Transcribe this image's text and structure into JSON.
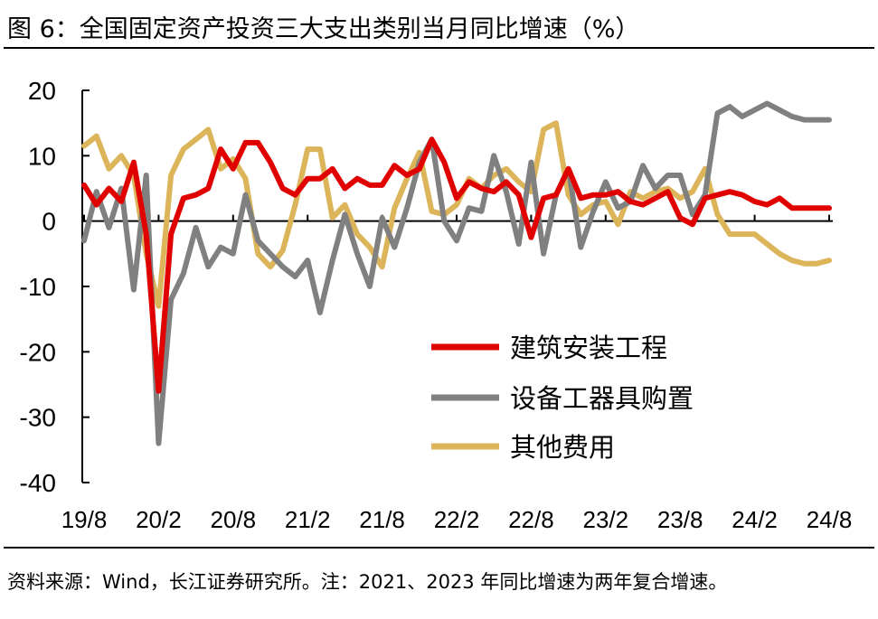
{
  "header": {
    "title": "图 6：全国固定资产投资三大支出类别当月同比增速（%）"
  },
  "footer": {
    "source": "资料来源：Wind，长江证券研究所。注：2021、2023 年同比增速为两年复合增速。"
  },
  "chart_data": {
    "type": "line",
    "title": "图 6：全国固定资产投资三大支出类别当月同比增速（%）",
    "x": [
      "19/8",
      "19/9",
      "19/10",
      "19/11",
      "19/12",
      "20/1",
      "20/2",
      "20/3",
      "20/4",
      "20/5",
      "20/6",
      "20/7",
      "20/8",
      "20/9",
      "20/10",
      "20/11",
      "20/12",
      "21/1",
      "21/2",
      "21/3",
      "21/4",
      "21/5",
      "21/6",
      "21/7",
      "21/8",
      "21/9",
      "21/10",
      "21/11",
      "21/12",
      "22/1",
      "22/2",
      "22/3",
      "22/4",
      "22/5",
      "22/6",
      "22/7",
      "22/8",
      "22/9",
      "22/10",
      "22/11",
      "22/12",
      "23/1",
      "23/2",
      "23/3",
      "23/4",
      "23/5",
      "23/6",
      "23/7",
      "23/8",
      "23/9",
      "23/10",
      "23/11",
      "23/12",
      "24/1",
      "24/2",
      "24/3",
      "24/4",
      "24/5",
      "24/6",
      "24/7",
      "24/8"
    ],
    "x_ticks": [
      "19/8",
      "20/2",
      "20/8",
      "21/2",
      "21/8",
      "22/2",
      "22/8",
      "23/2",
      "23/8",
      "24/2",
      "24/8"
    ],
    "ylim": [
      -40,
      20
    ],
    "yticks": [
      20,
      10,
      0,
      -10,
      -20,
      -30,
      -40
    ],
    "legend_position": "center-right",
    "series": [
      {
        "name": "建筑安装工程",
        "color": "#e00000",
        "values": [
          5.5,
          2.5,
          5.0,
          3.0,
          9.0,
          -2.0,
          -26.0,
          -2.0,
          3.5,
          4.0,
          5.0,
          11.0,
          8.0,
          12.0,
          12.0,
          9.0,
          5.0,
          4.0,
          6.5,
          6.5,
          8.0,
          5.0,
          6.5,
          5.5,
          5.5,
          8.5,
          7.0,
          8.0,
          12.5,
          9.0,
          3.5,
          6.0,
          5.0,
          4.5,
          6.0,
          4.0,
          -2.5,
          3.5,
          4.0,
          8.0,
          3.5,
          4.0,
          4.0,
          4.5,
          3.0,
          2.5,
          3.5,
          4.5,
          0.5,
          -0.5,
          3.5,
          4.0,
          4.5,
          4.0,
          3.0,
          2.5,
          3.5,
          2.0,
          2.0,
          2.0,
          2.0
        ]
      },
      {
        "name": "设备工器具购置",
        "color": "#808080",
        "values": [
          -3.0,
          4.5,
          -1.0,
          5.0,
          -10.5,
          7.0,
          -34.0,
          -12.0,
          -8.0,
          -1.0,
          -7.0,
          -4.0,
          -5.0,
          4.0,
          -3.0,
          -5.0,
          -7.0,
          -8.5,
          -6.0,
          -14.0,
          -6.0,
          1.0,
          -5.0,
          -10.0,
          0.5,
          -4.0,
          2.0,
          9.0,
          12.5,
          0.0,
          -3.0,
          2.0,
          1.5,
          10.0,
          4.5,
          -3.5,
          9.0,
          -5.0,
          4.0,
          8.0,
          -4.0,
          1.5,
          6.0,
          2.0,
          3.0,
          8.5,
          5.0,
          7.0,
          7.0,
          1.0,
          4.0,
          16.5,
          17.5,
          16.0,
          17.0,
          18.0,
          17.0,
          16.0,
          15.5,
          15.5,
          15.5
        ]
      },
      {
        "name": "其他费用",
        "color": "#dcb45a",
        "values": [
          11.5,
          13.0,
          8.0,
          10.0,
          7.0,
          -5.0,
          -13.0,
          7.0,
          11.0,
          12.5,
          14.0,
          8.0,
          9.5,
          6.5,
          -5.0,
          -7.0,
          -4.5,
          2.5,
          11.0,
          11.0,
          0.5,
          2.5,
          -2.0,
          -4.0,
          -7.0,
          2.0,
          6.5,
          10.5,
          1.5,
          1.0,
          2.5,
          6.5,
          5.0,
          7.0,
          8.0,
          6.0,
          4.5,
          14.0,
          15.0,
          4.0,
          1.0,
          2.5,
          3.0,
          -0.5,
          4.5,
          3.5,
          4.5,
          5.0,
          3.5,
          4.5,
          8.0,
          1.0,
          -2.0,
          -2.0,
          -2.0,
          -3.5,
          -5.0,
          -6.0,
          -6.5,
          -6.5,
          -6.0
        ]
      }
    ]
  }
}
